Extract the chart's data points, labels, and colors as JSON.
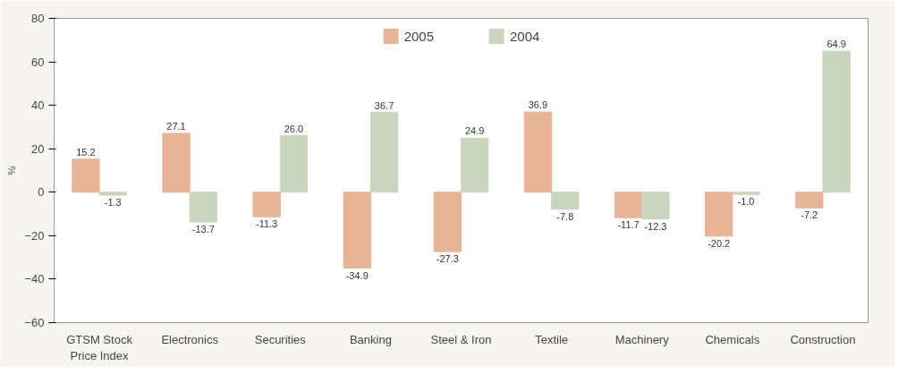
{
  "chart_data": {
    "type": "bar",
    "ylabel": "%",
    "categories": [
      "GTSM Stock Price Index",
      "Electronics",
      "Securities",
      "Banking",
      "Steel & Iron",
      "Textile",
      "Machinery",
      "Chemicals",
      "Construction"
    ],
    "series": [
      {
        "name": "2005",
        "color": "#e8b496",
        "values": [
          15.2,
          27.1,
          -11.3,
          -34.9,
          -27.3,
          36.9,
          -11.7,
          -20.2,
          -7.2
        ],
        "value_labels": [
          "15.2",
          "27.1",
          "-11.3",
          "-34.9",
          "-27.3",
          "36.9",
          "-11.7",
          "-20.2",
          "-7.2"
        ]
      },
      {
        "name": "2004",
        "color": "#c9d5bd",
        "values": [
          -1.3,
          -13.7,
          26.0,
          36.7,
          24.9,
          -7.8,
          -12.3,
          -1.0,
          64.9
        ],
        "value_labels": [
          "-1.3",
          "-13.7",
          "26.0",
          "36.7",
          "24.9",
          "-7.8",
          "-12.3",
          "-1.0",
          "64.9"
        ]
      }
    ],
    "ylim": [
      -60,
      80
    ],
    "yticks": [
      -60,
      -40,
      -20,
      0,
      20,
      40,
      60,
      80
    ],
    "grid": false,
    "legend": "top"
  }
}
